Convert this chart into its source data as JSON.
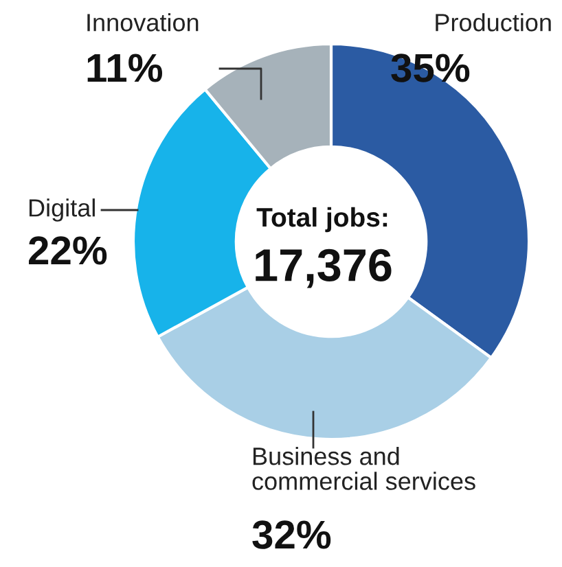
{
  "chart_data": {
    "type": "donut",
    "categories": [
      "Production",
      "Business and\ncommercial services",
      "Digital",
      "Innovation"
    ],
    "values": [
      35,
      32,
      22,
      11
    ],
    "colors": [
      "#2b5ba3",
      "#a9cfe6",
      "#17b3ea",
      "#a6b2ba"
    ],
    "value_labels": [
      "35%",
      "32%",
      "22%",
      "11%"
    ],
    "annotations": [
      "Total jobs:",
      "17,376"
    ]
  }
}
